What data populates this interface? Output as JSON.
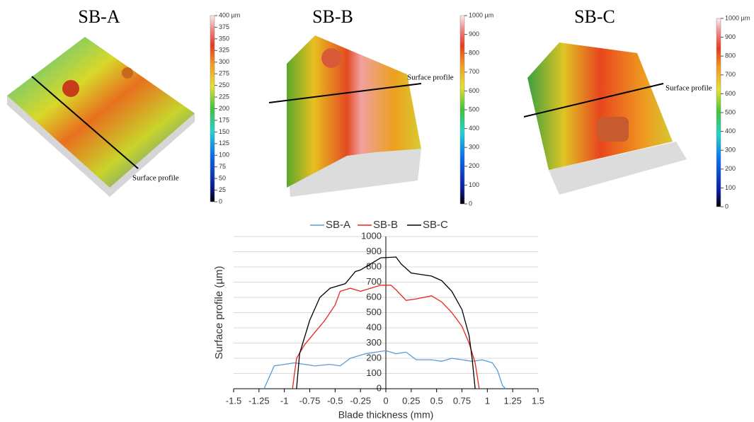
{
  "surface_panels": [
    {
      "title": "SB-A",
      "annotation": "Surface profile",
      "colorbar_lim": [
        0,
        400
      ],
      "colorbar_ticks": [
        0,
        25,
        50,
        75,
        100,
        125,
        150,
        175,
        200,
        225,
        250,
        275,
        300,
        325,
        350,
        375,
        {
          "value": 400,
          "label": "400 µm"
        }
      ]
    },
    {
      "title": "SB-B",
      "annotation": "Surface profile",
      "colorbar_lim": [
        0,
        1000
      ],
      "colorbar_ticks": [
        0,
        100,
        200,
        300,
        400,
        500,
        600,
        700,
        800,
        900,
        {
          "value": 1000,
          "label": "1000 µm"
        }
      ]
    },
    {
      "title": "SB-C",
      "annotation": "Surface profile",
      "colorbar_lim": [
        0,
        1000
      ],
      "colorbar_ticks": [
        0,
        100,
        200,
        300,
        400,
        500,
        600,
        700,
        800,
        900,
        {
          "value": 1000,
          "label": "1000 µm"
        }
      ]
    }
  ],
  "chart_data": {
    "type": "line",
    "x_label": "Blade thickness (mm)",
    "y_label": "Surface profile (µm)",
    "xlim": [
      -1.5,
      1.5
    ],
    "xticks": [
      -1.5,
      -1.25,
      -1,
      -0.75,
      -0.5,
      -0.25,
      0,
      0.25,
      0.5,
      0.75,
      1,
      1.25,
      1.5
    ],
    "ylim": [
      0,
      1000
    ],
    "yticks": [
      0,
      100,
      200,
      300,
      400,
      500,
      600,
      700,
      800,
      900,
      1000
    ],
    "grid": true,
    "series": [
      {
        "name": "SB-A",
        "color": "#5b9bd5",
        "x": [
          -1.2,
          -1.1,
          -1.0,
          -0.9,
          -0.7,
          -0.55,
          -0.45,
          -0.35,
          -0.2,
          -0.1,
          0,
          0.1,
          0.2,
          0.3,
          0.45,
          0.55,
          0.65,
          0.75,
          0.85,
          0.95,
          1.05,
          1.1,
          1.15,
          1.18
        ],
        "values": [
          0,
          150,
          160,
          170,
          150,
          160,
          150,
          200,
          230,
          240,
          250,
          230,
          240,
          190,
          190,
          180,
          200,
          190,
          180,
          190,
          170,
          120,
          20,
          0
        ]
      },
      {
        "name": "SB-B",
        "color": "#e8251e",
        "x": [
          -0.92,
          -0.88,
          -0.8,
          -0.7,
          -0.6,
          -0.5,
          -0.45,
          -0.35,
          -0.25,
          -0.15,
          -0.05,
          0.05,
          0.1,
          0.2,
          0.3,
          0.45,
          0.55,
          0.65,
          0.75,
          0.82,
          0.88,
          0.92
        ],
        "values": [
          0,
          200,
          290,
          370,
          450,
          550,
          640,
          660,
          640,
          660,
          680,
          680,
          650,
          580,
          590,
          610,
          570,
          500,
          410,
          300,
          170,
          0
        ]
      },
      {
        "name": "SB-C",
        "color": "#000000",
        "x": [
          -0.88,
          -0.85,
          -0.75,
          -0.65,
          -0.55,
          -0.4,
          -0.3,
          -0.25,
          -0.15,
          -0.05,
          0.1,
          0.15,
          0.25,
          0.35,
          0.45,
          0.55,
          0.65,
          0.75,
          0.82,
          0.85,
          0.88
        ],
        "values": [
          0,
          230,
          450,
          600,
          660,
          690,
          770,
          780,
          820,
          860,
          865,
          820,
          760,
          750,
          740,
          710,
          640,
          520,
          350,
          200,
          0
        ]
      }
    ]
  }
}
